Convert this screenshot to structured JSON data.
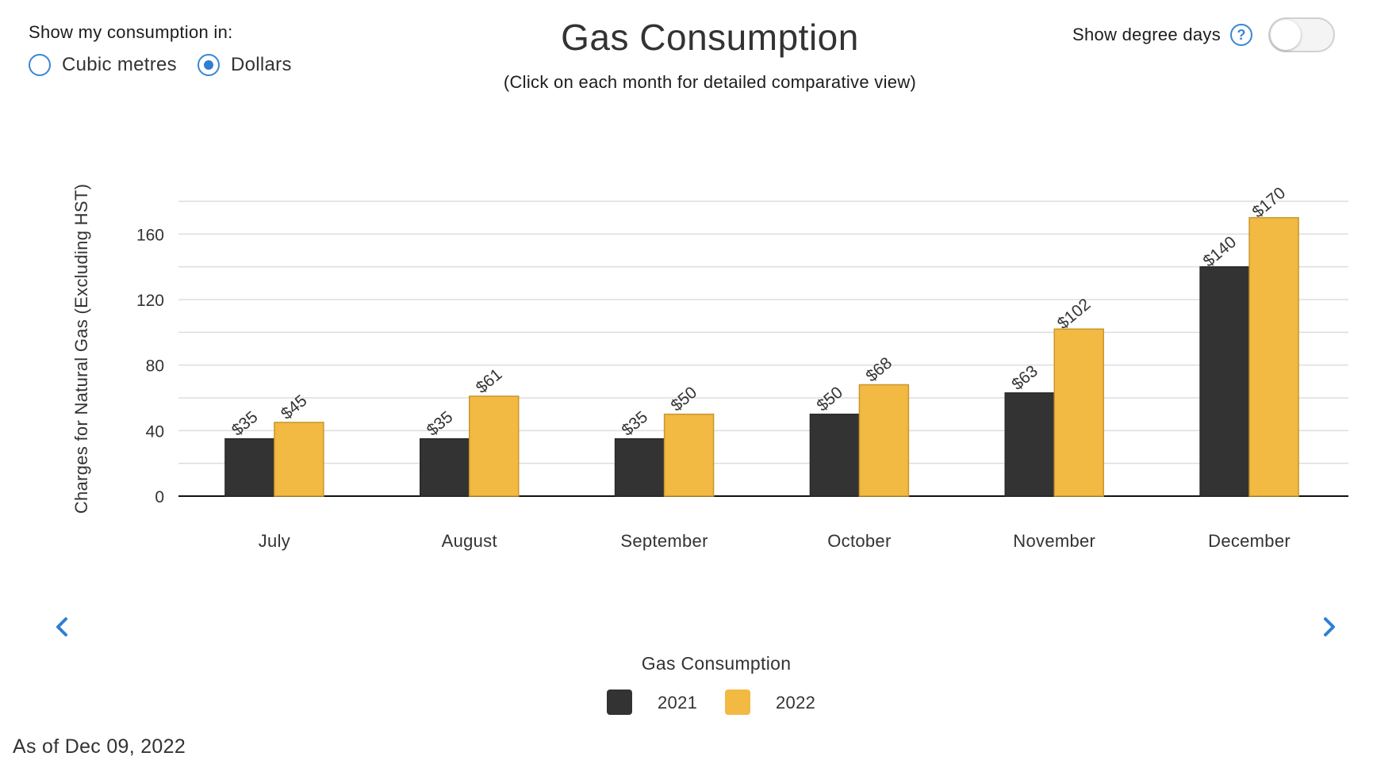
{
  "controls": {
    "unit_prompt": "Show my consumption in:",
    "unit_options": [
      {
        "label": "Cubic metres",
        "checked": false
      },
      {
        "label": "Dollars",
        "checked": true
      }
    ],
    "degree_days_label": "Show degree days",
    "degree_days_help": "?",
    "degree_days_on": false
  },
  "footer": {
    "as_of": "As of Dec 09, 2022"
  },
  "colors": {
    "series_2021": "#333333",
    "series_2022": "#f2b943",
    "accent": "#3a86d4"
  },
  "chart_data": {
    "type": "bar",
    "title": "Gas Consumption",
    "subtitle": "(Click on each month for detailed comparative view)",
    "ylabel": "Charges for Natural Gas (Excluding HST)",
    "xlabel": "",
    "legend_title": "Gas Consumption",
    "legend_position": "bottom-center",
    "categories": [
      "July",
      "August",
      "September",
      "October",
      "November",
      "December"
    ],
    "ylim": [
      0,
      180
    ],
    "yticks": [
      0,
      40,
      80,
      120,
      160
    ],
    "grid": true,
    "series": [
      {
        "name": "2021",
        "values": [
          35,
          35,
          35,
          50,
          63,
          140
        ],
        "labels": [
          "$35",
          "$35",
          "$35",
          "$50",
          "$63",
          "$140"
        ]
      },
      {
        "name": "2022",
        "values": [
          45,
          61,
          50,
          68,
          102,
          170
        ],
        "labels": [
          "$45",
          "$61",
          "$50",
          "$68",
          "$102",
          "$170"
        ]
      }
    ]
  }
}
